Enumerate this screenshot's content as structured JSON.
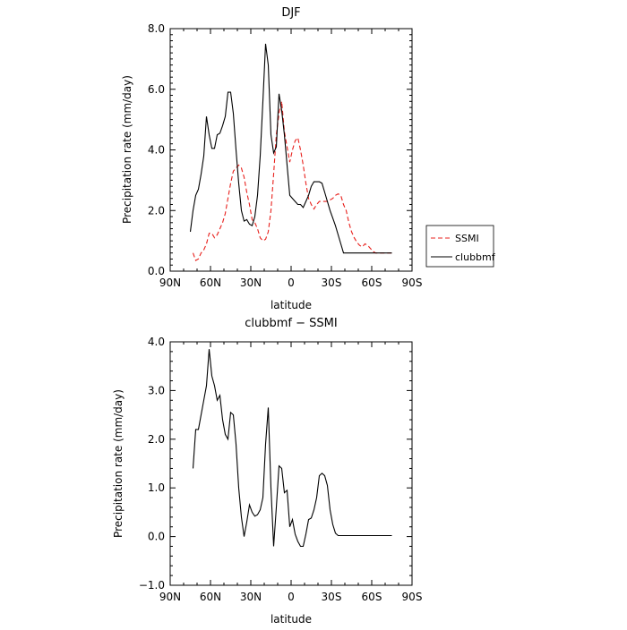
{
  "chart_data": [
    {
      "type": "line",
      "title": "DJF",
      "xlabel": "latitude",
      "ylabel": "Precipitation rate (mm/day)",
      "xlim": [
        -90,
        90
      ],
      "ylim": [
        0,
        8
      ],
      "x_ticks": [
        -90,
        -60,
        -30,
        0,
        30,
        60,
        90
      ],
      "x_tick_labels": [
        "90N",
        "60N",
        "30N",
        "0",
        "30S",
        "60S",
        "90S"
      ],
      "y_ticks": [
        0,
        2,
        4,
        6,
        8
      ],
      "y_tick_labels": [
        "0.0",
        "2.0",
        "4.0",
        "6.0",
        "8.0"
      ],
      "legend": {
        "placement": "right",
        "entries": [
          {
            "label": "SSMI",
            "color": "#e8201c",
            "dash": "dashed"
          },
          {
            "label": "clubbmf",
            "color": "#000000",
            "dash": "solid"
          }
        ]
      },
      "series": [
        {
          "name": "SSMI",
          "color": "#e8201c",
          "dashed": true,
          "x": [
            -73,
            -71,
            -69,
            -67,
            -65,
            -63,
            -61,
            -59,
            -57,
            -55,
            -53,
            -51,
            -49,
            -47,
            -45,
            -43,
            -41,
            -39,
            -37,
            -35,
            -33,
            -31,
            -29,
            -27,
            -25,
            -23,
            -21,
            -19,
            -17,
            -15,
            -13,
            -11,
            -9,
            -7,
            -5,
            -3,
            -1,
            1,
            3,
            5,
            7,
            9,
            11,
            13,
            15,
            17,
            19,
            21,
            23,
            25,
            27,
            29,
            31,
            33,
            35,
            37,
            39,
            41,
            43,
            45,
            47,
            49,
            51,
            53,
            55,
            57,
            59,
            61,
            63,
            65,
            67,
            69,
            71,
            73,
            75
          ],
          "values": [
            0.6,
            0.35,
            0.4,
            0.6,
            0.7,
            0.9,
            1.25,
            1.25,
            1.1,
            1.2,
            1.4,
            1.6,
            1.9,
            2.4,
            2.9,
            3.3,
            3.4,
            3.5,
            3.4,
            3.1,
            2.6,
            2.2,
            1.7,
            1.6,
            1.4,
            1.1,
            1.0,
            1.05,
            1.3,
            2.0,
            3.2,
            4.5,
            5.2,
            5.6,
            4.6,
            4.1,
            3.6,
            4.0,
            4.3,
            4.4,
            4.0,
            3.5,
            2.9,
            2.4,
            2.2,
            2.05,
            2.2,
            2.3,
            2.3,
            2.3,
            2.3,
            2.35,
            2.4,
            2.5,
            2.55,
            2.5,
            2.2,
            2.0,
            1.6,
            1.3,
            1.1,
            0.95,
            0.85,
            0.8,
            0.9,
            0.85,
            0.75,
            0.65,
            0.6,
            0.6,
            0.6,
            0.6,
            0.6,
            0.6,
            0.6
          ]
        },
        {
          "name": "clubbmf",
          "color": "#000000",
          "dashed": false,
          "x": [
            -75,
            -73,
            -71,
            -69,
            -67,
            -65,
            -63,
            -61,
            -59,
            -57,
            -55,
            -53,
            -51,
            -49,
            -47,
            -45,
            -43,
            -41,
            -39,
            -37,
            -35,
            -33,
            -31,
            -29,
            -27,
            -25,
            -23,
            -21,
            -19,
            -17,
            -15,
            -13,
            -11,
            -9,
            -7,
            -5,
            -3,
            -1,
            1,
            3,
            5,
            7,
            9,
            11,
            13,
            15,
            17,
            19,
            21,
            23,
            25,
            27,
            29,
            31,
            33,
            35,
            37,
            39,
            41,
            43,
            45,
            47,
            49,
            51,
            53,
            55,
            57,
            59,
            61,
            63,
            65,
            67,
            69,
            71,
            73,
            75
          ],
          "values": [
            1.3,
            2.0,
            2.5,
            2.7,
            3.2,
            3.8,
            5.1,
            4.5,
            4.05,
            4.05,
            4.5,
            4.55,
            4.8,
            5.1,
            5.9,
            5.9,
            5.2,
            4.0,
            2.9,
            2.0,
            1.65,
            1.7,
            1.55,
            1.5,
            1.8,
            2.5,
            3.8,
            5.6,
            7.5,
            6.8,
            4.5,
            3.9,
            4.1,
            5.85,
            5.3,
            4.5,
            3.5,
            2.5,
            2.4,
            2.3,
            2.2,
            2.2,
            2.1,
            2.3,
            2.5,
            2.8,
            2.95,
            2.95,
            2.95,
            2.9,
            2.6,
            2.3,
            2.0,
            1.75,
            1.5,
            1.2,
            0.9,
            0.6,
            0.6,
            0.6,
            0.6,
            0.6,
            0.6,
            0.6,
            0.6,
            0.6,
            0.6,
            0.6,
            0.6,
            0.6,
            0.6,
            0.6,
            0.6,
            0.6,
            0.6,
            0.6
          ]
        }
      ]
    },
    {
      "type": "line",
      "title": "clubbmf − SSMI",
      "xlabel": "latitude",
      "ylabel": "Precipitation rate (mm/day)",
      "xlim": [
        -90,
        90
      ],
      "ylim": [
        -1,
        4
      ],
      "x_ticks": [
        -90,
        -60,
        -30,
        0,
        30,
        60,
        90
      ],
      "x_tick_labels": [
        "90N",
        "60N",
        "30N",
        "0",
        "30S",
        "60S",
        "90S"
      ],
      "y_ticks": [
        -1,
        0,
        1,
        2,
        3,
        4
      ],
      "y_tick_labels": [
        "−1.0",
        "0.0",
        "1.0",
        "2.0",
        "3.0",
        "4.0"
      ],
      "series": [
        {
          "color": "#000000",
          "dashed": false,
          "x": [
            -73,
            -71,
            -69,
            -67,
            -65,
            -63,
            -61,
            -59,
            -57,
            -55,
            -53,
            -51,
            -49,
            -47,
            -45,
            -43,
            -41,
            -39,
            -37,
            -35,
            -33,
            -31,
            -29,
            -27,
            -25,
            -23,
            -21,
            -19,
            -17,
            -15,
            -13,
            -11,
            -9,
            -7,
            -5,
            -3,
            -1,
            1,
            3,
            5,
            7,
            9,
            11,
            13,
            15,
            17,
            19,
            21,
            23,
            25,
            27,
            29,
            31,
            33,
            35,
            37,
            39,
            41,
            43,
            45,
            47,
            49,
            51,
            53,
            55,
            57,
            59,
            61,
            63,
            65,
            67,
            69,
            71,
            73,
            75
          ],
          "values": [
            1.4,
            2.2,
            2.2,
            2.5,
            2.8,
            3.1,
            3.85,
            3.3,
            3.1,
            2.8,
            2.9,
            2.4,
            2.1,
            2.0,
            2.55,
            2.5,
            1.9,
            1.0,
            0.4,
            0.0,
            0.3,
            0.65,
            0.5,
            0.42,
            0.45,
            0.55,
            0.8,
            1.9,
            2.65,
            1.0,
            -0.2,
            0.6,
            1.45,
            1.4,
            0.9,
            0.95,
            0.2,
            0.35,
            0.05,
            -0.1,
            -0.2,
            -0.2,
            0.05,
            0.35,
            0.38,
            0.55,
            0.8,
            1.25,
            1.3,
            1.25,
            1.05,
            0.55,
            0.25,
            0.07,
            0.02,
            0.02,
            0.02,
            0.02,
            0.02,
            0.02,
            0.02,
            0.02,
            0.02,
            0.02,
            0.02,
            0.02,
            0.02,
            0.02,
            0.02,
            0.02,
            0.02,
            0.02,
            0.02,
            0.02,
            0.02
          ]
        }
      ]
    }
  ]
}
